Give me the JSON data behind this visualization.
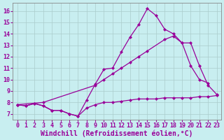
{
  "bg_color": "#c8eef0",
  "line_color": "#990099",
  "marker": "D",
  "markersize": 2.5,
  "linewidth": 0.9,
  "xlabel": "Windchill (Refroidissement éolien,°C)",
  "xlabel_fontsize": 7,
  "tick_fontsize": 6,
  "xlim": [
    -0.5,
    23.5
  ],
  "ylim": [
    6.5,
    16.7
  ],
  "xticks": [
    0,
    1,
    2,
    3,
    4,
    5,
    6,
    7,
    8,
    9,
    10,
    11,
    12,
    13,
    14,
    15,
    16,
    17,
    18,
    19,
    20,
    21,
    22,
    23
  ],
  "yticks": [
    7,
    8,
    9,
    10,
    11,
    12,
    13,
    14,
    15,
    16
  ],
  "grid_color": "#aacccc",
  "series_spike_x": [
    0,
    1,
    2,
    3,
    4,
    5,
    6,
    7,
    8,
    9,
    10,
    11,
    12,
    13,
    14,
    15,
    16,
    17,
    18,
    19,
    20,
    21,
    22
  ],
  "series_spike_y": [
    7.8,
    7.7,
    7.9,
    7.7,
    7.3,
    7.3,
    7.0,
    6.8,
    8.2,
    9.6,
    10.9,
    11.0,
    12.4,
    13.7,
    14.8,
    16.2,
    15.6,
    14.4,
    14.0,
    13.2,
    11.2,
    10.0,
    9.7
  ],
  "series_diag_x": [
    0,
    3,
    9,
    10,
    11,
    12,
    13,
    14,
    15,
    17,
    18,
    19,
    20,
    21,
    22,
    23
  ],
  "series_diag_y": [
    7.8,
    8.0,
    9.5,
    10.0,
    10.5,
    11.0,
    11.5,
    12.0,
    12.5,
    13.5,
    13.8,
    13.2,
    13.2,
    11.2,
    9.5,
    8.7
  ],
  "series_flat_x": [
    0,
    1,
    2,
    3,
    4,
    5,
    6,
    7,
    8,
    9,
    10,
    11,
    12,
    13,
    14,
    15,
    16,
    17,
    18,
    19,
    20,
    21,
    22,
    23
  ],
  "series_flat_y": [
    7.8,
    7.7,
    7.9,
    7.7,
    7.3,
    7.3,
    7.0,
    6.8,
    7.5,
    7.8,
    8.0,
    8.0,
    8.1,
    8.2,
    8.3,
    8.3,
    8.3,
    8.4,
    8.4,
    8.4,
    8.4,
    8.5,
    8.5,
    8.6
  ]
}
